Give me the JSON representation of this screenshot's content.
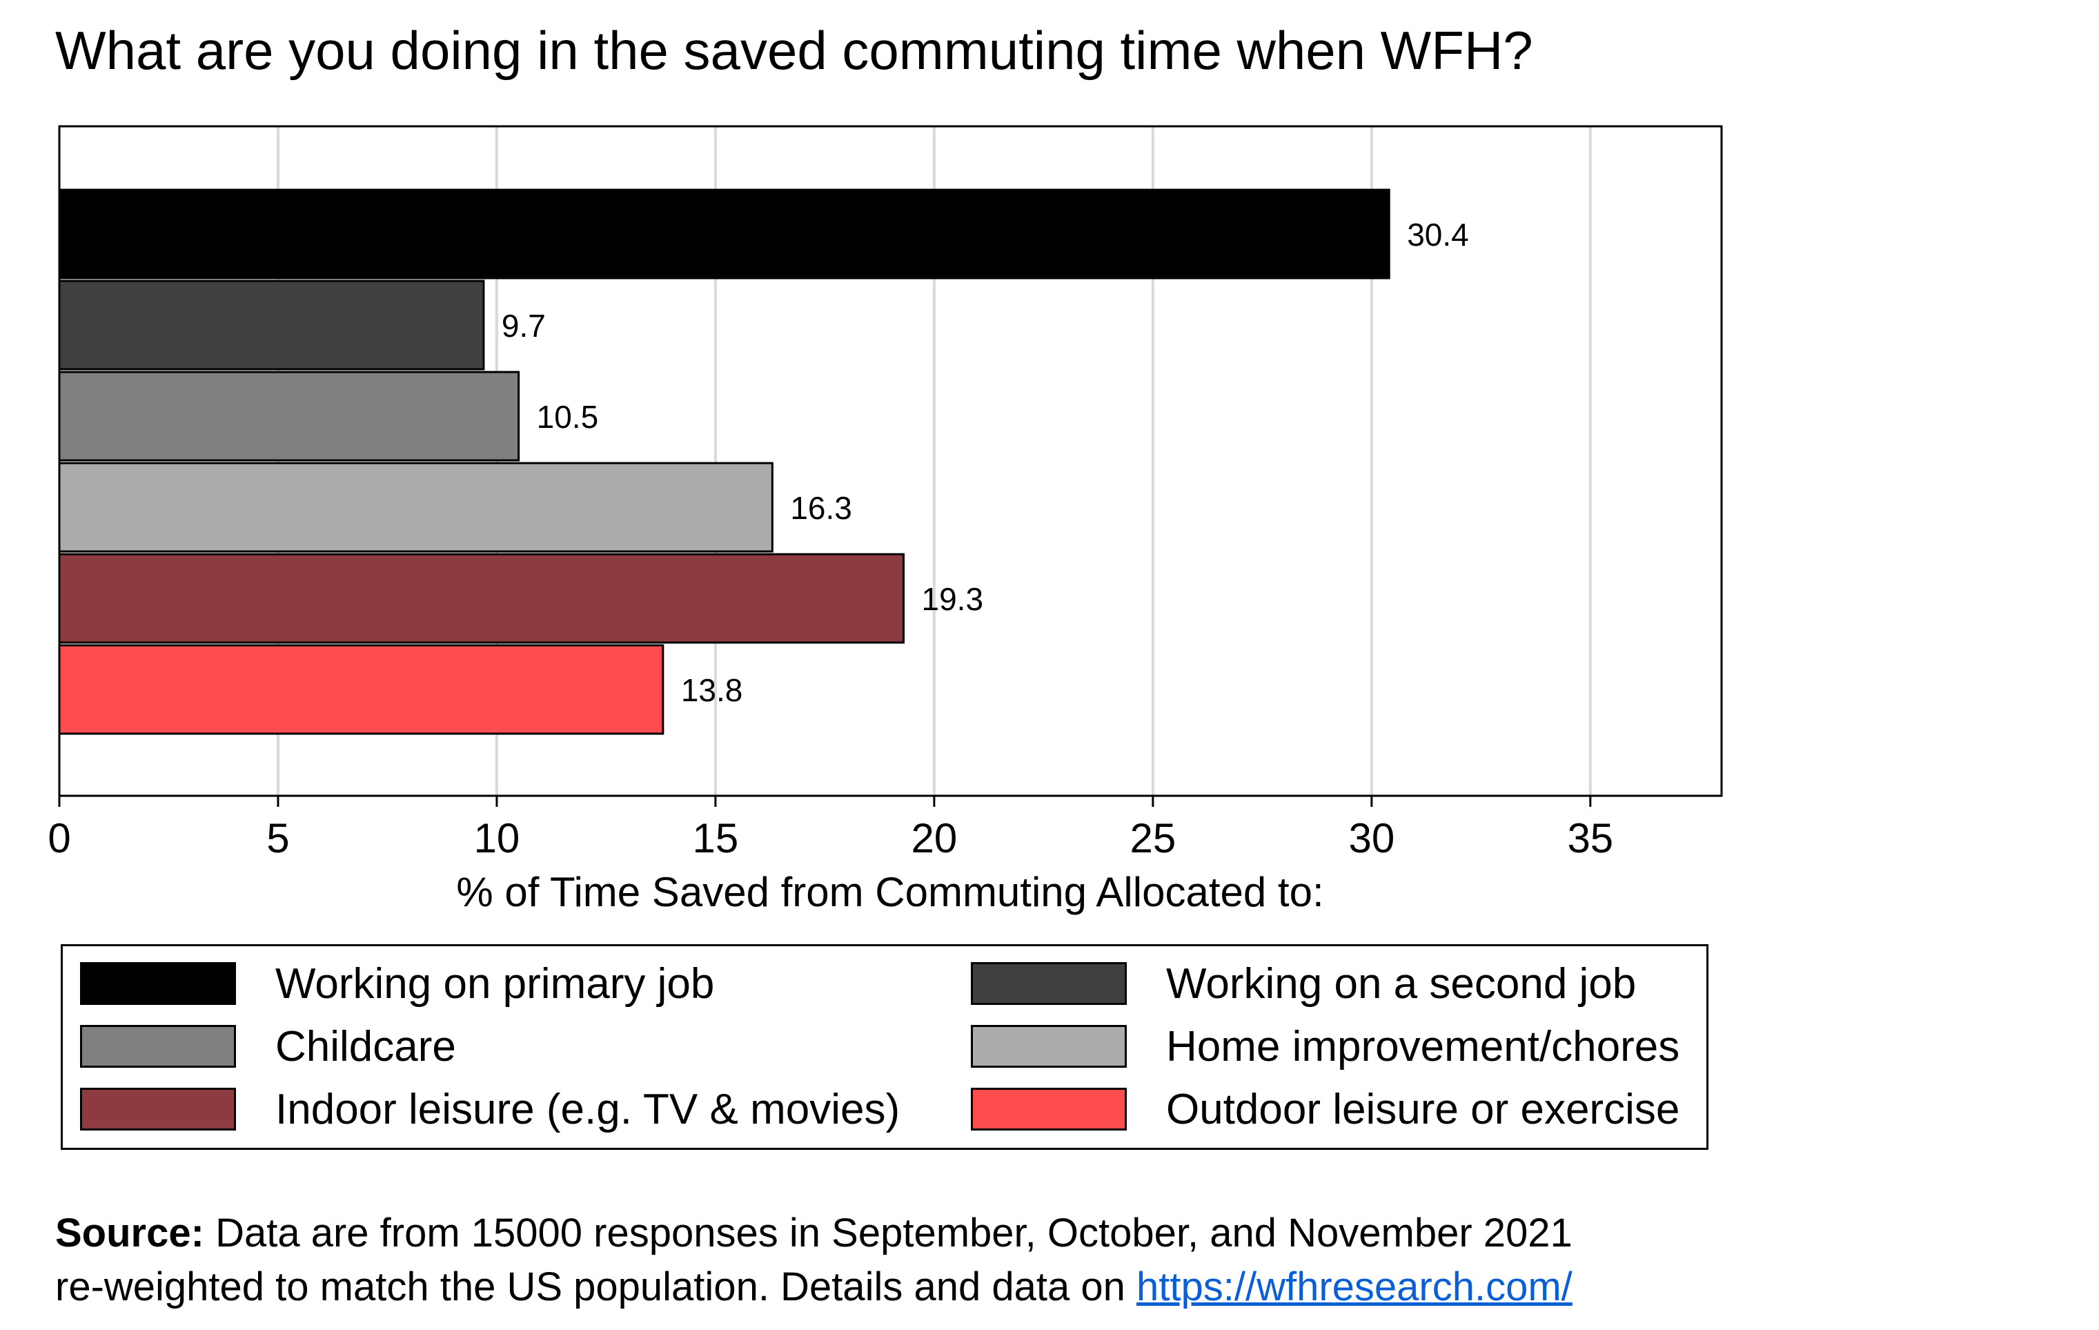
{
  "title": "What are you doing in the saved commuting time when WFH?",
  "chart_data": {
    "type": "bar",
    "orientation": "horizontal",
    "title": "What are you doing in the saved commuting time when WFH?",
    "xlabel": "% of Time Saved from Commuting Allocated to:",
    "ylabel": "",
    "xlim": [
      0,
      38
    ],
    "xticks": [
      0,
      5,
      10,
      15,
      20,
      25,
      30,
      35
    ],
    "grid": "vertical",
    "legend_position": "bottom",
    "categories": [
      "Working on primary job",
      "Working on a second job",
      "Childcare",
      "Home improvement/chores",
      "Indoor leisure (e.g. TV & movies)",
      "Outdoor leisure or exercise"
    ],
    "values": [
      30.4,
      9.7,
      10.5,
      16.3,
      19.3,
      13.8
    ],
    "value_labels": [
      "30.4",
      "9.7",
      "10.5",
      "16.3",
      "19.3",
      "13.8"
    ],
    "colors": [
      "#000000",
      "#404040",
      "#808080",
      "#ababab",
      "#8e3a41",
      "#ff4d4f"
    ]
  },
  "legend": {
    "items": [
      {
        "label": "Working on primary job",
        "color": "#000000"
      },
      {
        "label": "Working on a second job",
        "color": "#404040"
      },
      {
        "label": "Childcare",
        "color": "#808080"
      },
      {
        "label": "Home improvement/chores",
        "color": "#ababab"
      },
      {
        "label": "Indoor leisure (e.g. TV & movies)",
        "color": "#8e3a41"
      },
      {
        "label": "Outdoor leisure or exercise",
        "color": "#ff4d4f"
      }
    ]
  },
  "source": {
    "label": "Source:",
    "line1": "Data are from 15000 responses in September, October, and November 2021",
    "line2": "re-weighted to match the US population. Details and data on",
    "link_text": "https://wfhresearch.com/"
  },
  "colors": {
    "grid": "#d9d9d9",
    "link": "#0b5fd6"
  }
}
